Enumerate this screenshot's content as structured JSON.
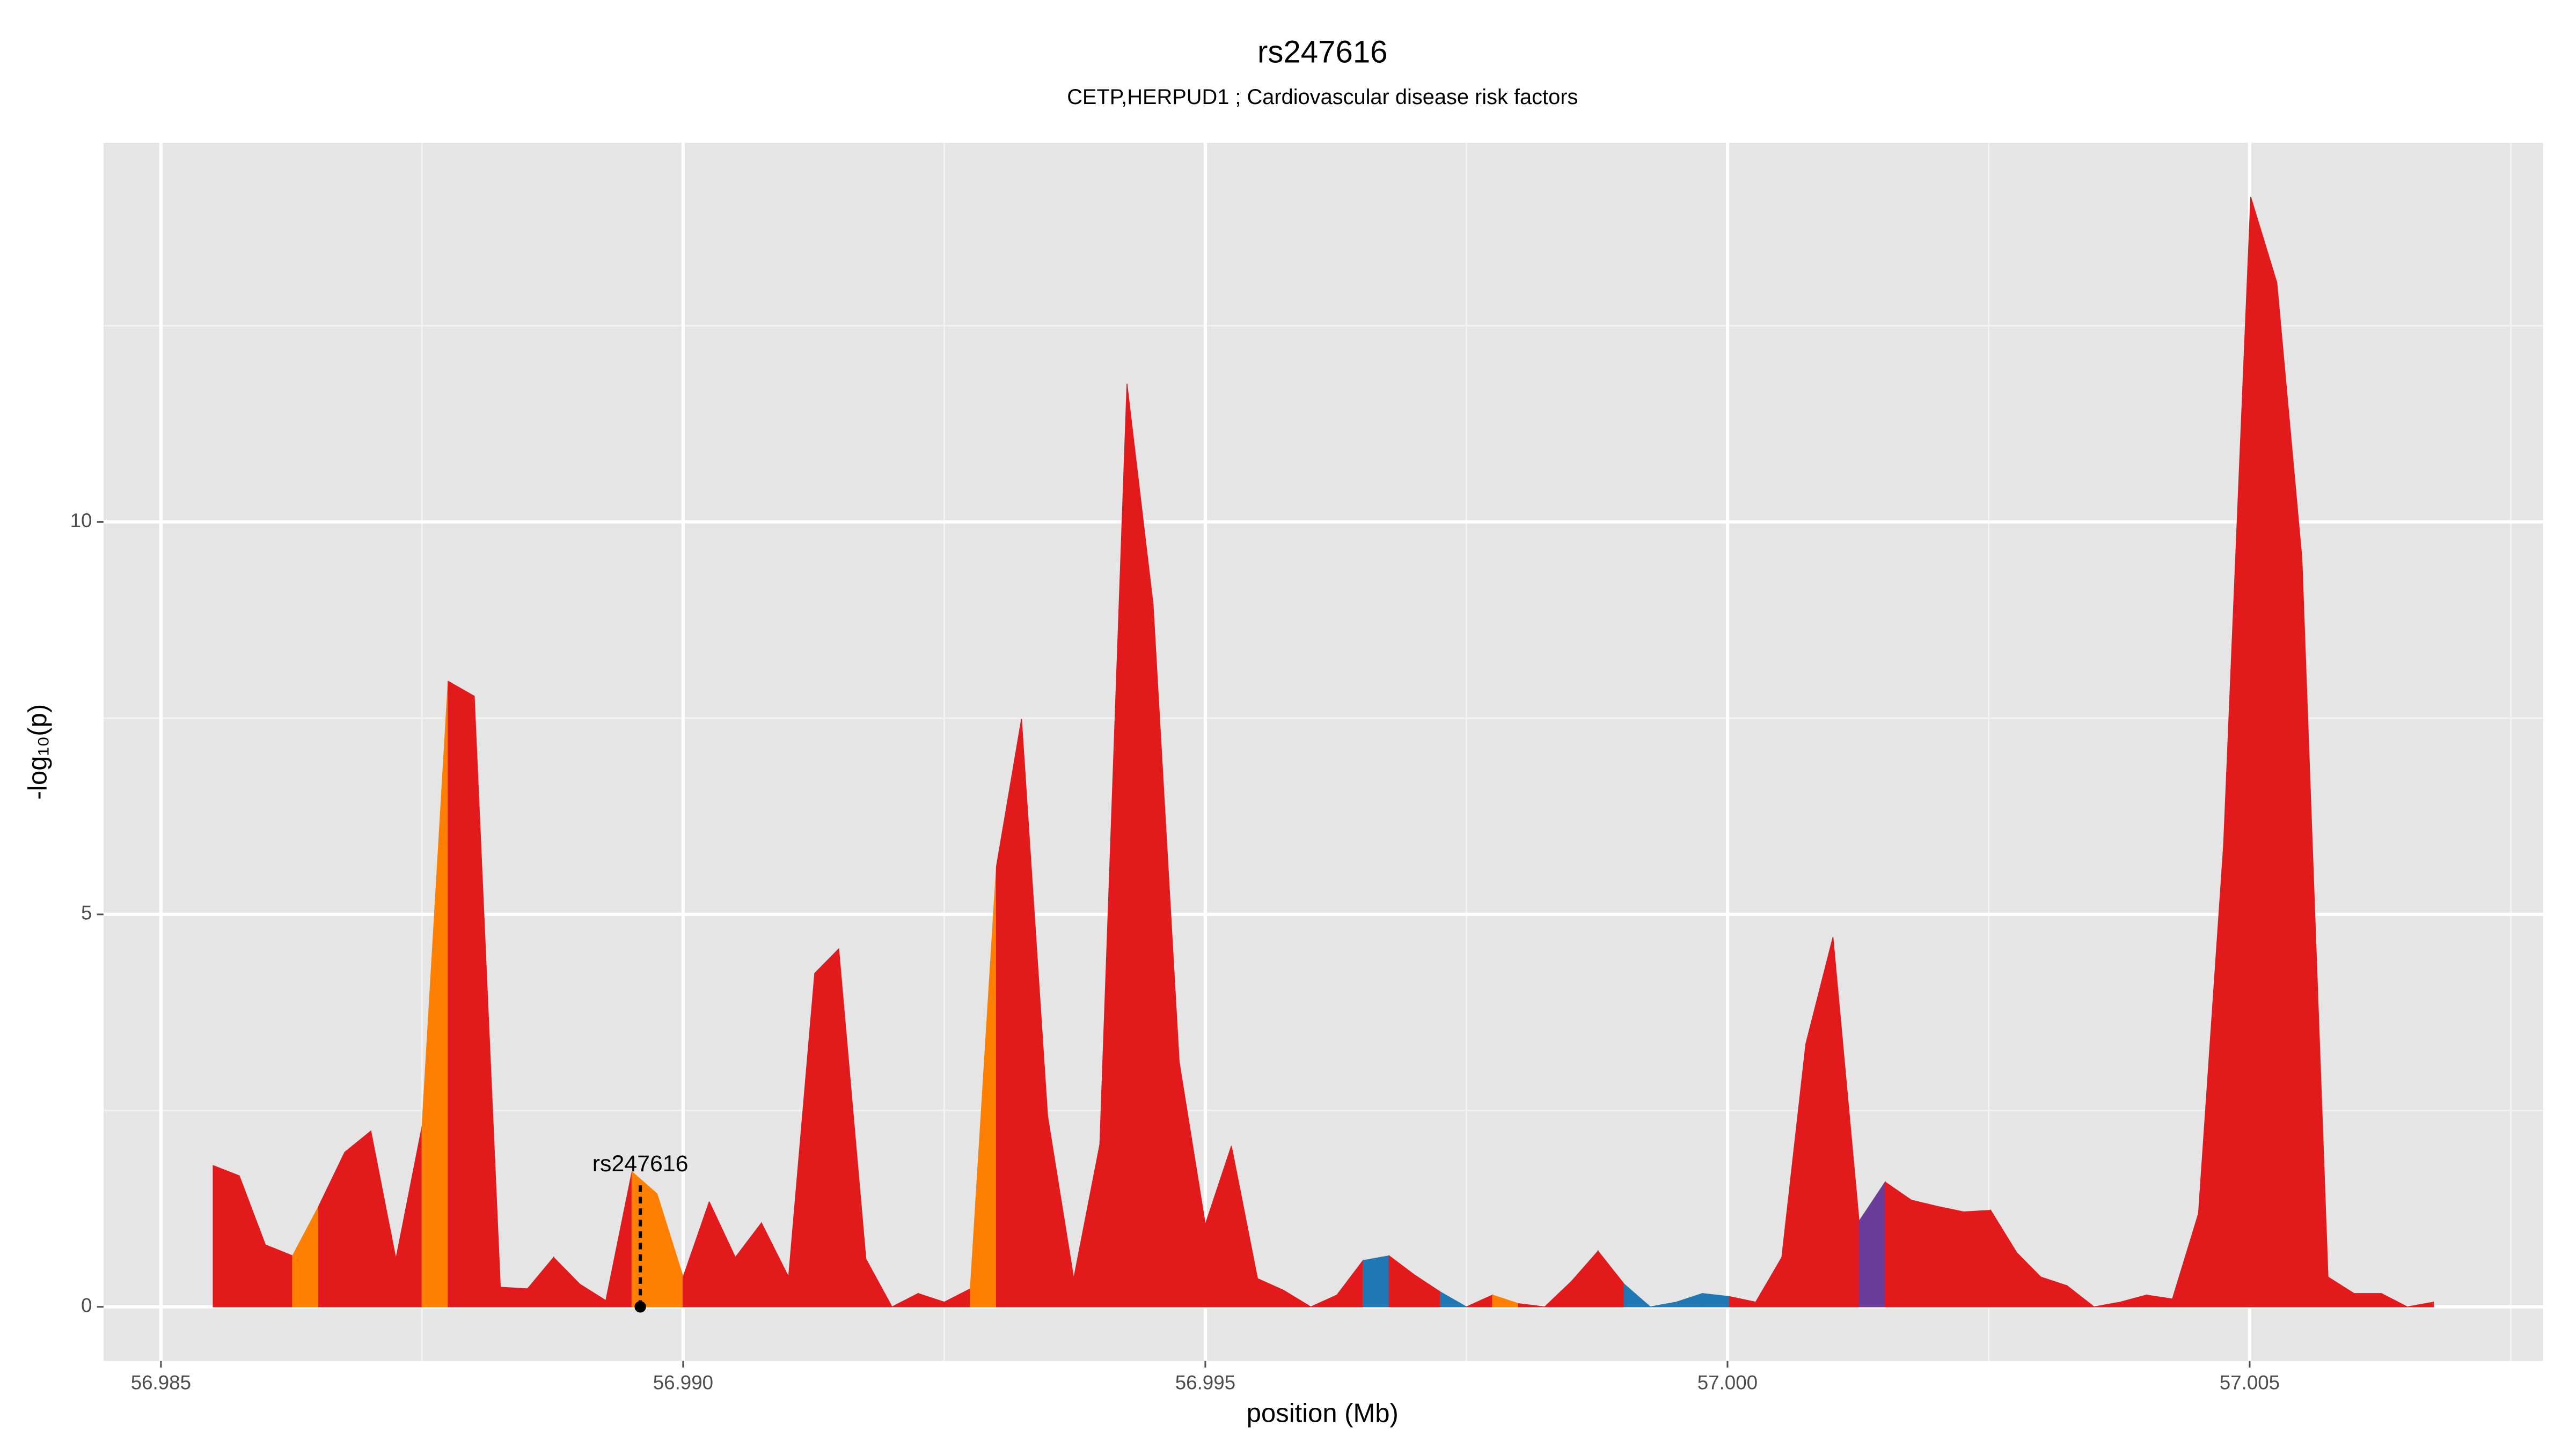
{
  "chart_data": {
    "type": "area",
    "title": "rs247616",
    "subtitle": "CETP,HERPUD1 ; Cardiovascular disease risk factors",
    "xlabel": "position (Mb)",
    "ylabel": "-log₁₀(p)",
    "x": [
      56.9855,
      56.98575,
      56.986,
      56.98626,
      56.98651,
      56.98676,
      56.98701,
      56.98725,
      56.9875,
      56.98775,
      56.988,
      56.98825,
      56.98851,
      56.98876,
      56.98901,
      56.98926,
      56.98951,
      56.98975,
      56.99,
      56.99025,
      56.9905,
      56.99075,
      56.99101,
      56.99126,
      56.99149,
      56.99175,
      56.992,
      56.99225,
      56.9925,
      56.99275,
      56.993,
      56.99324,
      56.99349,
      56.99374,
      56.99399,
      56.99425,
      56.9945,
      56.99475,
      56.995,
      56.99525,
      56.9955,
      56.99575,
      56.99601,
      56.99626,
      56.99651,
      56.99676,
      56.99701,
      56.99725,
      56.9975,
      56.99775,
      56.998,
      56.99825,
      56.99851,
      56.99876,
      56.99901,
      56.99926,
      56.99951,
      56.99976,
      57.00002,
      57.00027,
      57.00052,
      57.00075,
      57.00101,
      57.00126,
      57.00151,
      57.00176,
      57.00201,
      57.00226,
      57.00252,
      57.00277,
      57.003,
      57.00325,
      57.00351,
      57.00376,
      57.00401,
      57.00426,
      57.00451,
      57.00475,
      57.00501,
      57.00526,
      57.0055,
      57.00575,
      57.006,
      57.00626,
      57.00651,
      57.00676
    ],
    "series": [
      {
        "values": [
          1.8,
          1.67,
          0.79,
          0.65,
          1.28,
          1.97,
          2.24,
          0.61,
          2.3,
          7.97,
          7.78,
          0.25,
          0.23,
          0.63,
          0.29,
          0.08,
          1.72,
          1.44,
          0.38,
          1.34,
          0.63,
          1.07,
          0.38,
          4.25,
          4.56,
          0.61,
          0,
          0.17,
          0.06,
          0.23,
          5.61,
          7.49,
          2.43,
          0.36,
          2.07,
          11.76,
          8.95,
          3.12,
          1.05,
          2.05,
          0.36,
          0.21,
          0,
          0.15,
          0.59,
          0.65,
          0.4,
          0.19,
          0,
          0.15,
          0.04,
          0,
          0.33,
          0.71,
          0.29,
          0,
          0.06,
          0.17,
          0.13,
          0.06,
          0.63,
          3.35,
          4.71,
          1.09,
          1.59,
          1.36,
          1.28,
          1.21,
          1.23,
          0.69,
          0.38,
          0.27,
          0,
          0.06,
          0.15,
          0.1,
          1.19,
          5.88,
          14.14,
          13.05,
          9.54,
          0.38,
          0.17,
          0.17,
          0,
          0.06
        ],
        "colors": [
          "#e31a1c",
          "#e31a1c",
          "#e31a1c",
          "#ff7f00",
          "#e31a1c",
          "#e31a1c",
          "#e31a1c",
          "#e31a1c",
          "#ff7f00",
          "#e31a1c",
          "#e31a1c",
          "#e31a1c",
          "#e31a1c",
          "#e31a1c",
          "#e31a1c",
          "#e31a1c",
          "#ff7f00",
          "#ff7f00",
          "#e31a1c",
          "#e31a1c",
          "#e31a1c",
          "#e31a1c",
          "#e31a1c",
          "#e31a1c",
          "#e31a1c",
          "#e31a1c",
          "#e31a1c",
          "#e31a1c",
          "#e31a1c",
          "#ff7f00",
          "#e31a1c",
          "#e31a1c",
          "#e31a1c",
          "#e31a1c",
          "#e31a1c",
          "#e31a1c",
          "#e31a1c",
          "#e31a1c",
          "#e31a1c",
          "#e31a1c",
          "#e31a1c",
          "#e31a1c",
          "#e31a1c",
          "#e31a1c",
          "#1f78b4",
          "#e31a1c",
          "#e31a1c",
          "#1f78b4",
          "#e31a1c",
          "#ff7f00",
          "#e31a1c",
          "#e31a1c",
          "#e31a1c",
          "#e31a1c",
          "#1f78b4",
          "#1f78b4",
          "#1f78b4",
          "#1f78b4",
          "#e31a1c",
          "#e31a1c",
          "#e31a1c",
          "#e31a1c",
          "#e31a1c",
          "#6a3d9a",
          "#e31a1c",
          "#e31a1c",
          "#e31a1c",
          "#e31a1c",
          "#e31a1c",
          "#e31a1c",
          "#e31a1c",
          "#e31a1c",
          "#e31a1c",
          "#e31a1c",
          "#e31a1c",
          "#e31a1c",
          "#e31a1c",
          "#e31a1c",
          "#e31a1c",
          "#e31a1c",
          "#e31a1c",
          "#e31a1c",
          "#e31a1c",
          "#e31a1c",
          "#e31a1c",
          "#e31a1c"
        ]
      }
    ],
    "highlight": {
      "label": "rs247616",
      "x": 56.98959,
      "y": 1.72
    },
    "xlim": [
      56.98445,
      57.00781
    ],
    "xticks": [
      56.985,
      {
        "value": 56.99,
        "label": "56.990"
      },
      {
        "value": 56.995,
        "label": "56.995"
      },
      {
        "value": 57.0,
        "label": "57.000"
      },
      57.005
    ],
    "ylim": [
      -0.69,
      14.83
    ],
    "yticks": [
      0,
      5,
      10
    ],
    "grid": true
  }
}
